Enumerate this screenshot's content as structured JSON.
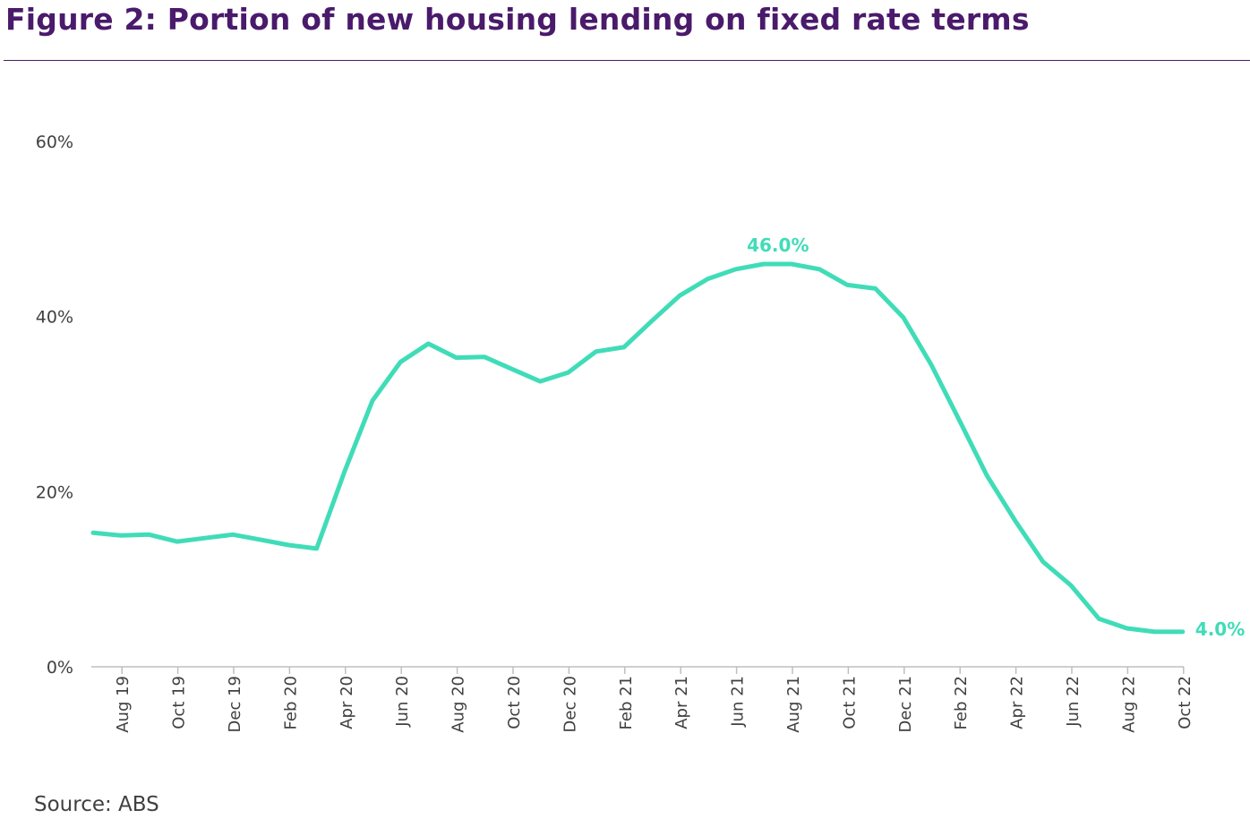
{
  "header": {
    "title": "Figure 2: Portion of new housing lending on fixed rate terms"
  },
  "footer": {
    "source": "Source: ABS"
  },
  "chart_data": {
    "type": "line",
    "title": "Figure 2: Portion of new housing lending on fixed rate terms",
    "xlabel": "",
    "ylabel": "",
    "ylim": [
      0,
      60
    ],
    "y_ticks": [
      0,
      20,
      40,
      60
    ],
    "y_tick_labels": [
      "0%",
      "20%",
      "40%",
      "60%"
    ],
    "x_tick_labels": [
      "Aug 19",
      "Oct 19",
      "Dec 19",
      "Feb 20",
      "Apr 20",
      "Jun 20",
      "Aug 20",
      "Oct 20",
      "Dec 20",
      "Feb 21",
      "Apr 21",
      "Jun 21",
      "Aug 21",
      "Oct 21",
      "Dec 21",
      "Feb 22",
      "Apr 22",
      "Jun 22",
      "Aug 22",
      "Oct 22"
    ],
    "grid": false,
    "legend": "none",
    "line_color": "#40dcb8",
    "series": [
      {
        "x": [
          "Jul 19",
          "Aug 19",
          "Sep 19",
          "Oct 19",
          "Nov 19",
          "Dec 19",
          "Jan 20",
          "Feb 20",
          "Mar 20",
          "Apr 20",
          "May 20",
          "Jun 20",
          "Jul 20",
          "Aug 20",
          "Sep 20",
          "Oct 20",
          "Nov 20",
          "Dec 20",
          "Jan 21",
          "Feb 21",
          "Mar 21",
          "Apr 21",
          "May 21",
          "Jun 21",
          "Jul 21",
          "Aug 21",
          "Sep 21",
          "Oct 21",
          "Nov 21",
          "Dec 21",
          "Jan 22",
          "Feb 22",
          "Mar 22",
          "Apr 22",
          "May 22",
          "Jun 22",
          "Jul 22",
          "Aug 22",
          "Sep 22",
          "Oct 22"
        ],
        "values": [
          15.3,
          15.0,
          15.1,
          14.3,
          14.7,
          15.1,
          14.5,
          13.9,
          13.5,
          22.3,
          30.4,
          34.8,
          36.9,
          35.3,
          35.4,
          34.0,
          32.6,
          33.6,
          36.0,
          36.5,
          39.5,
          42.4,
          44.3,
          45.4,
          46.0,
          46.0,
          45.4,
          43.6,
          43.2,
          39.9,
          34.5,
          28.2,
          21.8,
          16.7,
          12.0,
          9.3,
          5.5,
          4.4,
          4.0,
          4.0
        ]
      }
    ],
    "annotations": [
      {
        "text": "46.0%",
        "x": "Jul 21",
        "y": 46.0
      },
      {
        "text": "4.0%",
        "x": "Oct 22",
        "y": 4.0
      }
    ]
  }
}
